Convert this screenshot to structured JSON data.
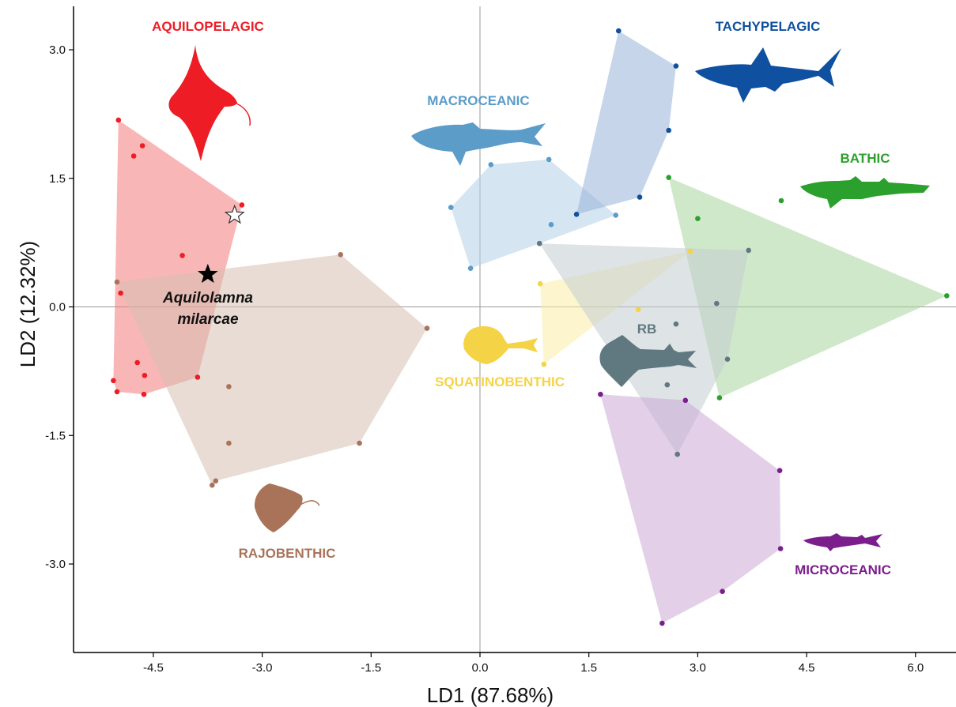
{
  "chart_data": {
    "type": "scatter",
    "xlabel": "LD1 (87.68%)",
    "ylabel": "LD2 (12.32%)",
    "xlim": [
      -4.83,
      6.43
    ],
    "ylim": [
      -4.0,
      3.5
    ],
    "x_ticks": [
      "-4.5",
      "-3.0",
      "-1.5",
      "0.0",
      "1.5",
      "3.0",
      "4.5",
      "6.0"
    ],
    "y_ticks": [
      "3.0",
      "1.5",
      "0.0",
      "-1.5",
      "-3.0"
    ],
    "reference_lines": {
      "x": 0,
      "y": 0
    },
    "grid": false,
    "series": [
      {
        "name": "AQUILOPELAGIC",
        "color": "#ee1c25",
        "fill": "#f47a7a",
        "silhouette": "manta-ray-icon",
        "points": [
          [
            -4.98,
            2.18
          ],
          [
            -4.65,
            1.88
          ],
          [
            -4.77,
            1.76
          ],
          [
            -3.28,
            1.19
          ],
          [
            -4.1,
            0.6
          ],
          [
            -4.95,
            0.16
          ],
          [
            -4.72,
            -0.65
          ],
          [
            -4.62,
            -0.8
          ],
          [
            -5.05,
            -0.86
          ],
          [
            -5.0,
            -0.99
          ],
          [
            -4.63,
            -1.02
          ],
          [
            -3.89,
            -0.82
          ]
        ],
        "hull": [
          [
            -4.98,
            2.18
          ],
          [
            -3.28,
            1.19
          ],
          [
            -3.89,
            -0.82
          ],
          [
            -4.63,
            -1.02
          ],
          [
            -5.0,
            -0.99
          ],
          [
            -5.05,
            -0.86
          ]
        ]
      },
      {
        "name": "RAJOBENTHIC",
        "color": "#a9735a",
        "fill": "#d6bfb0",
        "silhouette": "stingray-icon",
        "points": [
          [
            -5.0,
            0.29
          ],
          [
            -1.92,
            0.61
          ],
          [
            -0.73,
            -0.25
          ],
          [
            -3.46,
            -0.93
          ],
          [
            -3.46,
            -1.59
          ],
          [
            -1.66,
            -1.59
          ],
          [
            -3.64,
            -2.03
          ],
          [
            -3.69,
            -2.08
          ]
        ],
        "hull": [
          [
            -5.0,
            0.29
          ],
          [
            -1.92,
            0.61
          ],
          [
            -0.73,
            -0.25
          ],
          [
            -1.66,
            -1.59
          ],
          [
            -3.64,
            -2.03
          ],
          [
            -3.69,
            -2.08
          ]
        ]
      },
      {
        "name": "MACROCEANIC",
        "color": "#5b9cc9",
        "fill": "#b3cfe6",
        "silhouette": "whale-shark-icon",
        "points": [
          [
            -0.4,
            1.16
          ],
          [
            0.15,
            1.66
          ],
          [
            0.95,
            1.72
          ],
          [
            0.98,
            0.96
          ],
          [
            -0.13,
            0.45
          ],
          [
            0.82,
            0.74
          ],
          [
            1.87,
            1.07
          ]
        ],
        "hull": [
          [
            -0.4,
            1.16
          ],
          [
            0.15,
            1.66
          ],
          [
            0.95,
            1.72
          ],
          [
            1.87,
            1.07
          ],
          [
            0.82,
            0.74
          ],
          [
            -0.13,
            0.45
          ]
        ]
      },
      {
        "name": "TACHYPELAGIC",
        "color": "#1050a0",
        "fill": "#97b3d9",
        "silhouette": "mako-shark-icon",
        "points": [
          [
            1.91,
            3.22
          ],
          [
            2.7,
            2.81
          ],
          [
            2.6,
            2.06
          ],
          [
            2.2,
            1.28
          ],
          [
            1.33,
            1.08
          ]
        ],
        "hull": [
          [
            1.91,
            3.22
          ],
          [
            2.7,
            2.81
          ],
          [
            2.6,
            2.06
          ],
          [
            2.2,
            1.28
          ],
          [
            1.33,
            1.08
          ]
        ]
      },
      {
        "name": "BATHIC",
        "color": "#2ca02c",
        "fill": "#a9d59f",
        "silhouette": "dogfish-shark-icon",
        "points": [
          [
            2.6,
            1.51
          ],
          [
            4.15,
            1.24
          ],
          [
            3.0,
            1.03
          ],
          [
            6.43,
            0.13
          ],
          [
            3.3,
            -1.06
          ]
        ],
        "hull": [
          [
            2.6,
            1.51
          ],
          [
            6.43,
            0.13
          ],
          [
            3.3,
            -1.06
          ]
        ]
      },
      {
        "name": "SQUATINOBENTHIC",
        "color": "#f5d346",
        "fill": "#fbeca5",
        "silhouette": "angel-shark-icon",
        "points": [
          [
            0.83,
            0.27
          ],
          [
            2.9,
            0.65
          ],
          [
            2.18,
            -0.03
          ],
          [
            0.88,
            -0.67
          ]
        ],
        "hull": [
          [
            0.83,
            0.27
          ],
          [
            2.9,
            0.65
          ],
          [
            0.88,
            -0.67
          ]
        ]
      },
      {
        "name": "RB",
        "color": "#607880",
        "fill": "#c3ccd2",
        "silhouette": "guitarfish-icon",
        "points": [
          [
            0.82,
            0.74
          ],
          [
            3.7,
            0.66
          ],
          [
            3.26,
            0.04
          ],
          [
            2.7,
            -0.2
          ],
          [
            3.41,
            -0.61
          ],
          [
            2.58,
            -0.91
          ],
          [
            2.72,
            -1.72
          ]
        ],
        "hull": [
          [
            0.82,
            0.74
          ],
          [
            3.7,
            0.66
          ],
          [
            3.41,
            -0.61
          ],
          [
            2.72,
            -1.72
          ]
        ]
      },
      {
        "name": "MICROCEANIC",
        "color": "#7b1e8c",
        "fill": "#ccaad6",
        "silhouette": "small-shark-icon",
        "points": [
          [
            1.66,
            -1.02
          ],
          [
            2.83,
            -1.09
          ],
          [
            4.13,
            -1.91
          ],
          [
            4.14,
            -2.82
          ],
          [
            3.34,
            -3.32
          ],
          [
            2.51,
            -3.69
          ]
        ],
        "hull": [
          [
            1.66,
            -1.02
          ],
          [
            2.83,
            -1.09
          ],
          [
            4.13,
            -1.91
          ],
          [
            4.14,
            -2.82
          ],
          [
            3.34,
            -3.32
          ],
          [
            2.51,
            -3.69
          ]
        ]
      }
    ],
    "annotations": [
      {
        "text": "Aquilolamna milarcae",
        "lines": [
          "Aquilolamna",
          "milarcae"
        ],
        "marker": "filled-star",
        "x": -3.75,
        "y": 0.38
      },
      {
        "marker": "open-star",
        "x": -3.38,
        "y": 1.07
      }
    ]
  }
}
